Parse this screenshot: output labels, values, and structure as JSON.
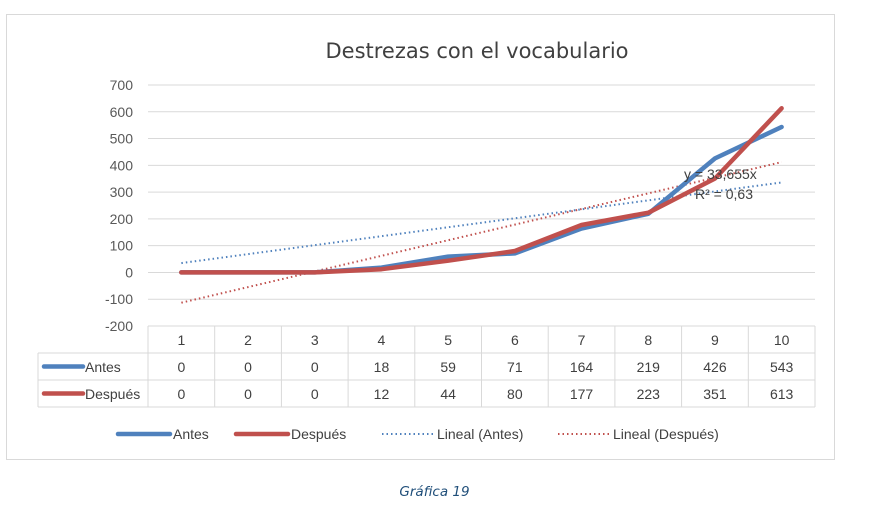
{
  "chart_data": {
    "type": "line",
    "title": "Destrezas con el vocabulario",
    "categories": [
      "1",
      "2",
      "3",
      "4",
      "5",
      "6",
      "7",
      "8",
      "9",
      "10"
    ],
    "y_ticks": [
      "700",
      "600",
      "500",
      "400",
      "300",
      "200",
      "100",
      "0",
      "-100",
      "-200"
    ],
    "ylim": [
      -200,
      700
    ],
    "grid": true,
    "series": [
      {
        "name": "Antes",
        "color": "#4f81bd",
        "values": [
          0,
          0,
          0,
          18,
          59,
          71,
          164,
          219,
          426,
          543
        ]
      },
      {
        "name": "Después",
        "color": "#c0504d",
        "values": [
          0,
          0,
          0,
          12,
          44,
          80,
          177,
          223,
          351,
          613
        ]
      }
    ],
    "trendlines": [
      {
        "name": "Lineal (Antes)",
        "color": "#4f81bd",
        "start": 35,
        "end": 336
      },
      {
        "name": "Lineal (Después)",
        "color": "#c0504d",
        "start": -113,
        "end": 412
      }
    ],
    "trend_equation": "y = 33,655x",
    "trend_r2": "R² = 0,63",
    "legend_position": "bottom",
    "data_table": true
  },
  "caption": "Gráfica 19"
}
